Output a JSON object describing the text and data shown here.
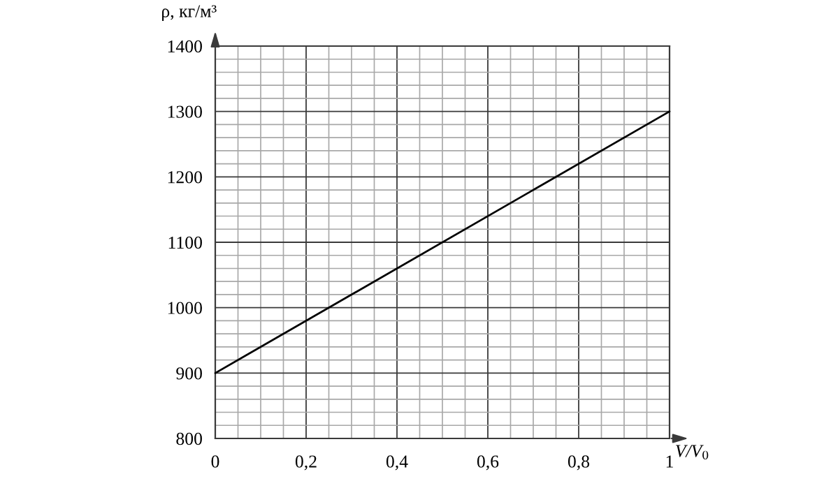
{
  "chart_data": {
    "type": "line",
    "xlabel": "V/V$_{0}$",
    "ylabel": "ρ, кг/м³",
    "x": [
      0,
      1
    ],
    "series": [
      {
        "color": "#000000",
        "values": [
          900,
          1300
        ]
      }
    ],
    "xlim": [
      0,
      1
    ],
    "ylim": [
      800,
      1400
    ],
    "xticks": [
      0,
      {
        "value": 0.05,
        "label": null
      },
      {
        "value": 0.1,
        "label": null
      },
      {
        "value": 0.15,
        "label": null
      },
      {
        "value": 0.2,
        "label": "0,2"
      },
      {
        "value": 0.25,
        "label": null
      },
      {
        "value": 0.3,
        "label": null
      },
      {
        "value": 0.35,
        "label": null
      },
      {
        "value": 0.4,
        "label": "0,4"
      },
      {
        "value": 0.45,
        "label": null
      },
      {
        "value": 0.5,
        "label": null
      },
      {
        "value": 0.55,
        "label": null
      },
      {
        "value": 0.6,
        "label": "0,6"
      },
      {
        "value": 0.65,
        "label": null
      },
      {
        "value": 0.7,
        "label": null
      },
      {
        "value": 0.75,
        "label": null
      },
      {
        "value": 0.8,
        "label": "0,8"
      },
      {
        "value": 0.85,
        "label": null
      },
      {
        "value": 0.9,
        "label": null
      },
      {
        "value": 0.95,
        "label": null
      },
      1
    ],
    "yticks": [
      800,
      {
        "value": 820,
        "label": null
      },
      {
        "value": 840,
        "label": null
      },
      {
        "value": 860,
        "label": null
      },
      {
        "value": 880,
        "label": null
      },
      900,
      {
        "value": 920,
        "label": null
      },
      {
        "value": 940,
        "label": null
      },
      {
        "value": 960,
        "label": null
      },
      {
        "value": 980,
        "label": null
      },
      1000,
      {
        "value": 1020,
        "label": null
      },
      {
        "value": 1040,
        "label": null
      },
      {
        "value": 1060,
        "label": null
      },
      {
        "value": 1080,
        "label": null
      },
      1100,
      {
        "value": 1120,
        "label": null
      },
      {
        "value": 1140,
        "label": null
      },
      {
        "value": 1160,
        "label": null
      },
      {
        "value": 1180,
        "label": null
      },
      1200,
      {
        "value": 1220,
        "label": null
      },
      {
        "value": 1240,
        "label": null
      },
      {
        "value": 1260,
        "label": null
      },
      {
        "value": 1280,
        "label": null
      },
      1300,
      {
        "value": 1320,
        "label": null
      },
      {
        "value": 1340,
        "label": null
      },
      {
        "value": 1360,
        "label": null
      },
      {
        "value": 1380,
        "label": null
      },
      1400
    ],
    "grid": true,
    "line_style": "solid"
  }
}
